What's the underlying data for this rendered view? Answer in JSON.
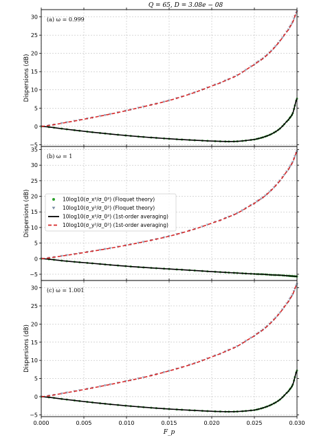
{
  "figure": {
    "suptitle": "Q = 65, D = 3.08e − 08",
    "xlabel": "F_p",
    "ylabel": "Dispersions (dB)"
  },
  "legend": {
    "items": [
      {
        "label": "10log10(σ_x²/σ_0²) (Floquet theory)",
        "marker": "circle",
        "color": "#2ca02c"
      },
      {
        "label": "10log10(σ_y²/σ_0²) (Floquet theory)",
        "marker": "triangle-down",
        "color": "#7f8fa6"
      },
      {
        "label": "10log10(σ_x²/σ_0²) (1st-order averaging)",
        "line": "solid",
        "color": "#000000"
      },
      {
        "label": "10log10(σ_y²/σ_0²) (1st-order averaging)",
        "line": "dashed",
        "color": "#d62728"
      }
    ]
  },
  "colors": {
    "x_floquet": "#2ca02c",
    "y_floquet": "#7f8fa6",
    "x_avg": "#000000",
    "y_avg": "#d62728",
    "grid": "#b0b0b0"
  },
  "chart_data": [
    {
      "type": "line",
      "panel_label": "(a) ω = 0.999",
      "xlim": [
        0.0,
        0.03
      ],
      "ylim": [
        -5.5,
        32
      ],
      "xticks": [
        "0.000",
        "0.005",
        "0.010",
        "0.015",
        "0.020",
        "0.025",
        "0.030"
      ],
      "yticks": [
        -5,
        0,
        5,
        10,
        15,
        20,
        25,
        30
      ],
      "grid": true,
      "x": [
        0.0,
        0.003,
        0.006,
        0.009,
        0.012,
        0.015,
        0.018,
        0.021,
        0.023,
        0.025,
        0.026,
        0.027,
        0.028,
        0.029,
        0.0295,
        0.03
      ],
      "series": [
        {
          "name": "10log10(σ_x²/σ_0²)",
          "values": [
            0.0,
            -0.8,
            -1.6,
            -2.3,
            -2.9,
            -3.4,
            -3.8,
            -4.1,
            -4.1,
            -3.6,
            -3.0,
            -2.1,
            -0.6,
            1.8,
            3.6,
            7.6
          ]
        },
        {
          "name": "10log10(σ_y²/σ_0²)",
          "values": [
            0.0,
            1.1,
            2.4,
            3.8,
            5.4,
            7.1,
            9.3,
            11.9,
            14.0,
            16.9,
            18.6,
            20.7,
            23.4,
            26.5,
            28.6,
            31.5
          ]
        }
      ]
    },
    {
      "type": "line",
      "panel_label": "(b) ω = 1",
      "xlim": [
        0.0,
        0.03
      ],
      "ylim": [
        -7,
        36
      ],
      "xticks": [
        "0.000",
        "0.005",
        "0.010",
        "0.015",
        "0.020",
        "0.025",
        "0.030"
      ],
      "yticks": [
        -5,
        0,
        5,
        10,
        15,
        20,
        25,
        30,
        35
      ],
      "grid": true,
      "x": [
        0.0,
        0.003,
        0.006,
        0.009,
        0.012,
        0.015,
        0.018,
        0.021,
        0.023,
        0.025,
        0.026,
        0.027,
        0.028,
        0.029,
        0.0295,
        0.03
      ],
      "series": [
        {
          "name": "10log10(σ_x²/σ_0²)",
          "values": [
            0.0,
            -0.8,
            -1.5,
            -2.2,
            -2.8,
            -3.3,
            -3.8,
            -4.3,
            -4.6,
            -4.9,
            -5.0,
            -5.2,
            -5.3,
            -5.5,
            -5.6,
            -5.7
          ]
        },
        {
          "name": "10log10(σ_y²/σ_0²)",
          "values": [
            0.0,
            1.1,
            2.4,
            3.8,
            5.4,
            7.2,
            9.5,
            12.3,
            14.6,
            17.7,
            19.6,
            22.0,
            25.0,
            28.6,
            31.0,
            34.4
          ]
        }
      ]
    },
    {
      "type": "line",
      "panel_label": "(c) ω = 1.001",
      "xlim": [
        0.0,
        0.03
      ],
      "ylim": [
        -5.5,
        32
      ],
      "xticks": [
        "0.000",
        "0.005",
        "0.010",
        "0.015",
        "0.020",
        "0.025",
        "0.030"
      ],
      "yticks": [
        -5,
        0,
        5,
        10,
        15,
        20,
        25,
        30
      ],
      "grid": true,
      "x": [
        0.0,
        0.003,
        0.006,
        0.009,
        0.012,
        0.015,
        0.018,
        0.021,
        0.023,
        0.025,
        0.026,
        0.027,
        0.028,
        0.029,
        0.0295,
        0.03
      ],
      "series": [
        {
          "name": "10log10(σ_x²/σ_0²)",
          "values": [
            0.0,
            -0.8,
            -1.6,
            -2.3,
            -2.9,
            -3.4,
            -3.8,
            -4.1,
            -4.1,
            -3.7,
            -3.1,
            -2.2,
            -0.8,
            1.5,
            3.3,
            7.2
          ]
        },
        {
          "name": "10log10(σ_y²/σ_0²)",
          "values": [
            0.0,
            1.1,
            2.4,
            3.8,
            5.3,
            7.1,
            9.2,
            11.8,
            13.9,
            16.7,
            18.4,
            20.5,
            23.1,
            26.2,
            28.2,
            31.0
          ]
        }
      ]
    }
  ]
}
